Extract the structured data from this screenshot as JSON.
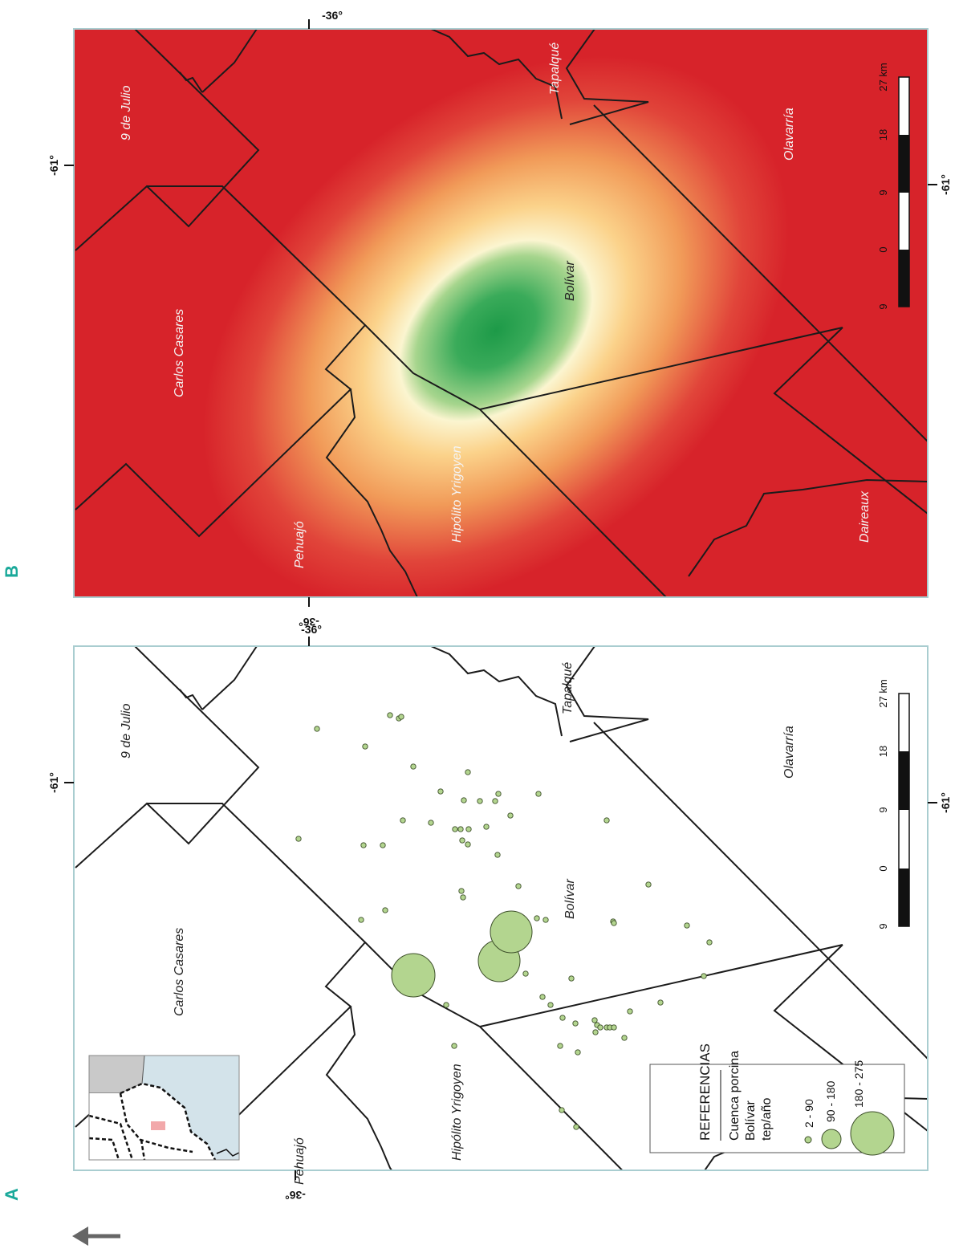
{
  "panels": {
    "a_letter": "A",
    "b_letter": "B"
  },
  "coords": {
    "lat": "-36°",
    "lon": "-61°"
  },
  "places": {
    "nueve_de_julio": "9 de Julio",
    "carlos_casares": "Carlos Casares",
    "pehuajo": "Pehuajó",
    "hipolito_yrigoyen": "Hipólito Yrigoyen",
    "bolivar": "Bolívar",
    "tapalque": "Tapalqué",
    "olavarria": "Olavarría",
    "daireaux": "Daireaux"
  },
  "scale": {
    "ticks": [
      "9",
      "0",
      "9",
      "18",
      "27 km"
    ]
  },
  "legend": {
    "title": "REFERENCIAS",
    "subtitle_1": "Cuenca porcina",
    "subtitle_2": "Bolívar",
    "unit": "tep/año",
    "classes": [
      "2 - 90",
      "90 - 180",
      "180 - 275"
    ]
  },
  "colors": {
    "frame": "#a9cdd0",
    "density_low": "#d7232a",
    "density_mid": "#fbba6e",
    "density_pale": "#fbf5d0",
    "density_high": "#1d9a48",
    "point_fill": "#b3d58f",
    "point_stroke": "#3d4f2a",
    "inset_water": "#d3e3ea",
    "inset_land": "#c9c9c9",
    "inset_highlight": "#f2a8aa",
    "north_arrow": "#666666"
  },
  "icons": {
    "north": "north-arrow-icon"
  }
}
